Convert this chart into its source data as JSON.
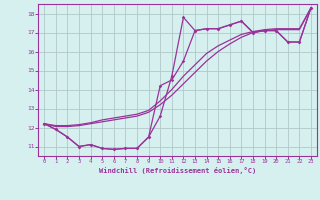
{
  "xlabel": "Windchill (Refroidissement éolien,°C)",
  "background_color": "#d6f0f0",
  "line_color": "#993399",
  "grid_color": "#b0c8c8",
  "xlim": [
    -0.5,
    23.5
  ],
  "ylim": [
    10.5,
    18.5
  ],
  "xticks": [
    0,
    1,
    2,
    3,
    4,
    5,
    6,
    7,
    8,
    9,
    10,
    11,
    12,
    13,
    14,
    15,
    16,
    17,
    18,
    19,
    20,
    21,
    22,
    23
  ],
  "yticks": [
    11,
    12,
    13,
    14,
    15,
    16,
    17,
    18
  ],
  "line1_x": [
    0,
    1,
    2,
    3,
    4,
    5,
    6,
    7,
    8,
    9,
    10,
    11,
    12,
    13,
    14,
    15,
    16,
    17,
    18,
    19,
    20,
    21,
    22,
    23
  ],
  "line1_y": [
    12.2,
    11.9,
    11.5,
    11.0,
    11.1,
    10.9,
    10.85,
    10.9,
    10.9,
    11.5,
    12.6,
    14.7,
    17.8,
    17.1,
    17.2,
    17.2,
    17.4,
    17.6,
    17.0,
    17.1,
    17.1,
    16.5,
    16.5,
    18.3
  ],
  "line2_x": [
    0,
    1,
    2,
    3,
    4,
    5,
    6,
    7,
    8,
    9,
    10,
    11,
    12,
    13,
    14,
    15,
    16,
    17,
    18,
    19,
    20,
    21,
    22,
    23
  ],
  "line2_y": [
    12.2,
    11.9,
    11.5,
    11.0,
    11.1,
    10.9,
    10.85,
    10.9,
    10.9,
    11.5,
    14.2,
    14.5,
    15.5,
    17.1,
    17.2,
    17.2,
    17.4,
    17.6,
    17.0,
    17.1,
    17.1,
    16.5,
    16.5,
    18.3
  ],
  "line3_x": [
    0,
    1,
    2,
    3,
    4,
    5,
    6,
    7,
    8,
    9,
    10,
    11,
    12,
    13,
    14,
    15,
    16,
    17,
    18,
    19,
    20,
    21,
    22,
    23
  ],
  "line3_y": [
    12.2,
    12.05,
    12.05,
    12.1,
    12.2,
    12.3,
    12.4,
    12.5,
    12.6,
    12.8,
    13.2,
    13.7,
    14.3,
    14.9,
    15.5,
    16.0,
    16.4,
    16.75,
    17.0,
    17.1,
    17.15,
    17.15,
    17.15,
    18.3
  ],
  "line4_x": [
    0,
    1,
    2,
    3,
    4,
    5,
    6,
    7,
    8,
    9,
    10,
    11,
    12,
    13,
    14,
    15,
    16,
    17,
    18,
    19,
    20,
    21,
    22,
    23
  ],
  "line4_y": [
    12.2,
    12.1,
    12.1,
    12.15,
    12.25,
    12.4,
    12.5,
    12.6,
    12.7,
    12.9,
    13.4,
    14.0,
    14.7,
    15.3,
    15.9,
    16.3,
    16.6,
    16.9,
    17.05,
    17.15,
    17.2,
    17.2,
    17.2,
    18.3
  ]
}
